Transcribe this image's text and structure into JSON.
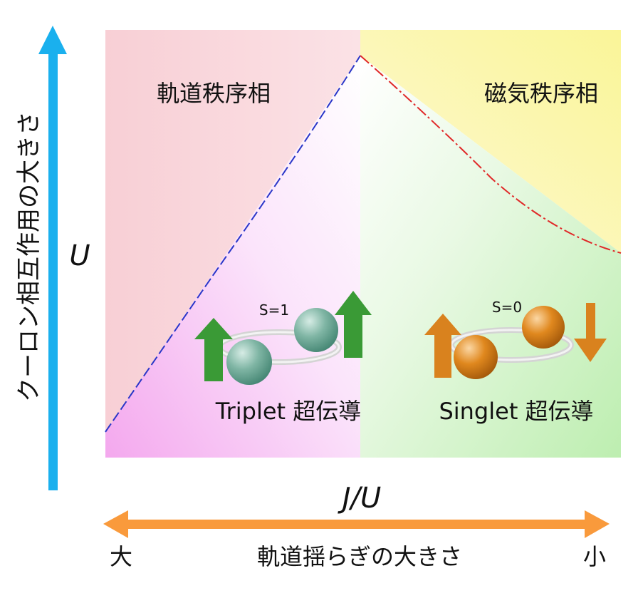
{
  "phases": {
    "orbital_order": "軌道秩序相",
    "magnetic_order": "磁気秩序相",
    "triplet": "Triplet 超伝導",
    "singlet": "Singlet 超伝導"
  },
  "spin_labels": {
    "triplet": "S=1",
    "singlet": "S=0"
  },
  "y_axis": {
    "label": "クーロン相互作用の大きさ",
    "symbol": "U"
  },
  "x_axis": {
    "symbol": "J/U",
    "label": "軌道揺らぎの大きさ",
    "left_end": "大",
    "right_end": "小"
  },
  "colors": {
    "orbital_region": "#f9d2d6",
    "magnetic_region": "#fbf6a8",
    "triplet_region": "#f6b6f0",
    "singlet_region": "#c6f0b8",
    "left_boundary": "#2a36c8",
    "right_boundary": "#e02828",
    "y_arrow": "#1ab0ee",
    "x_arrow": "#f99a3c",
    "triplet_spin": "#3a9a36",
    "triplet_ball": "#7fb5a4",
    "singlet_spin": "#d9821e",
    "singlet_ball": "#e08a1e"
  }
}
